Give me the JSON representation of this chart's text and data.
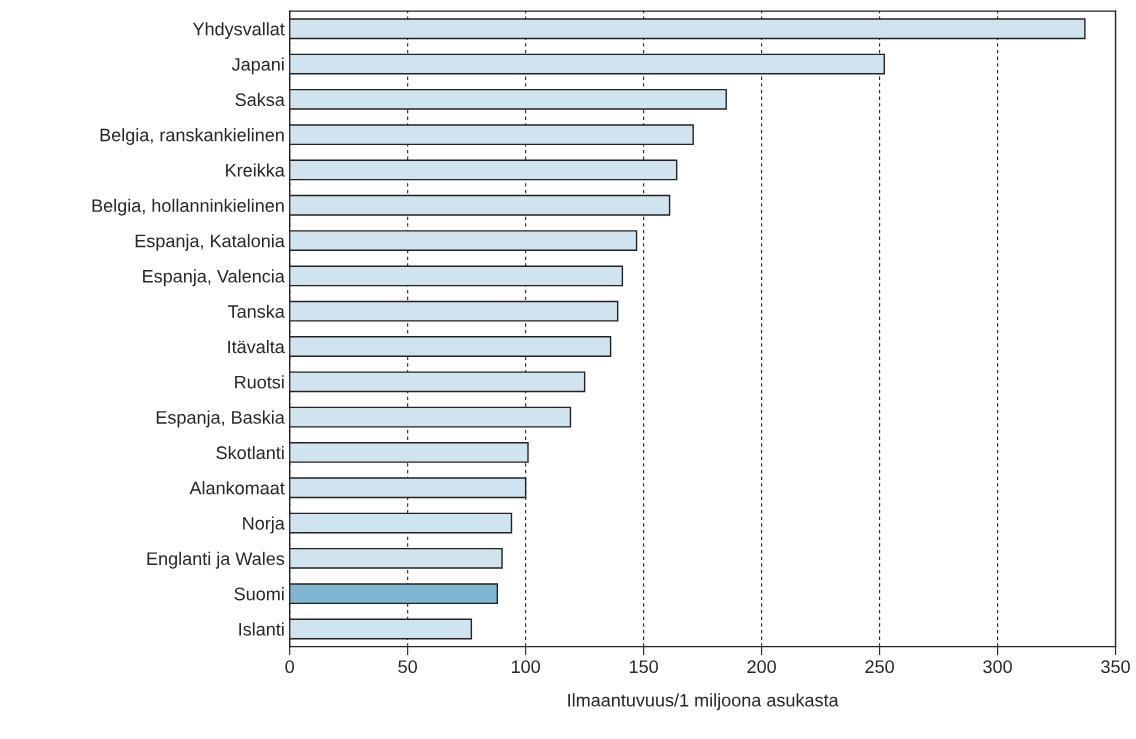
{
  "chart_data": {
    "type": "bar",
    "orientation": "horizontal",
    "xlabel": "Ilmaantuvuus/1 miljoona asukasta",
    "categories": [
      "Yhdysvallat",
      "Japani",
      "Saksa",
      "Belgia, ranskankielinen",
      "Kreikka",
      "Belgia, hollanninkielinen",
      "Espanja, Katalonia",
      "Espanja, Valencia",
      "Tanska",
      "Itävalta",
      "Ruotsi",
      "Espanja, Baskia",
      "Skotlanti",
      "Alankomaat",
      "Norja",
      "Englanti ja Wales",
      "Suomi",
      "Islanti"
    ],
    "values": [
      337,
      252,
      185,
      171,
      164,
      161,
      147,
      141,
      139,
      136,
      125,
      119,
      101,
      100,
      94,
      90,
      88,
      77
    ],
    "colors": [
      "#d0e4ef",
      "#d0e4ef",
      "#d0e4ef",
      "#d0e4ef",
      "#d0e4ef",
      "#d0e4ef",
      "#d0e4ef",
      "#d0e4ef",
      "#d0e4ef",
      "#d0e4ef",
      "#d0e4ef",
      "#d0e4ef",
      "#d0e4ef",
      "#d0e4ef",
      "#d0e4ef",
      "#d0e4ef",
      "#7fb6d1",
      "#d0e4ef"
    ],
    "xlim": [
      0,
      350
    ],
    "xticks": [
      0,
      50,
      100,
      150,
      200,
      250,
      300,
      350
    ],
    "grid": "x"
  }
}
